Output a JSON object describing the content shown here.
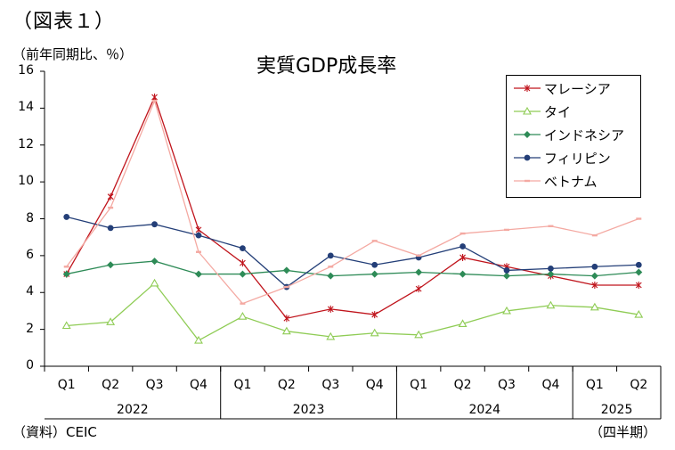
{
  "figure_label": "（図表１）",
  "unit_label": "（前年同期比、％）",
  "source_label": "（資料）CEIC",
  "period_label": "（四半期）",
  "chart_data": {
    "type": "line",
    "title": "実質GDP成長率",
    "ylim": [
      0,
      16
    ],
    "yticks": [
      0,
      2,
      4,
      6,
      8,
      10,
      12,
      14,
      16
    ],
    "categories": [
      "Q1",
      "Q2",
      "Q3",
      "Q4",
      "Q1",
      "Q2",
      "Q3",
      "Q4",
      "Q1",
      "Q2",
      "Q3",
      "Q4",
      "Q1",
      "Q2"
    ],
    "years": [
      {
        "label": "2022",
        "count": 4
      },
      {
        "label": "2023",
        "count": 4
      },
      {
        "label": "2024",
        "count": 4
      },
      {
        "label": "2025",
        "count": 2
      }
    ],
    "grid": false,
    "legend_position": "top-right",
    "series": [
      {
        "name": "マレーシア",
        "color": "#c0141c",
        "marker": "star",
        "values": [
          5.0,
          9.2,
          14.6,
          7.4,
          5.6,
          2.6,
          3.1,
          2.8,
          4.2,
          5.9,
          5.4,
          4.9,
          4.4,
          4.4
        ]
      },
      {
        "name": "タイ",
        "color": "#8fcc55",
        "marker": "triangle",
        "values": [
          2.2,
          2.4,
          4.5,
          1.4,
          2.7,
          1.9,
          1.6,
          1.8,
          1.7,
          2.3,
          3.0,
          3.3,
          3.2,
          2.8
        ]
      },
      {
        "name": "インドネシア",
        "color": "#2e8b57",
        "marker": "diamond",
        "values": [
          5.0,
          5.5,
          5.7,
          5.0,
          5.0,
          5.2,
          4.9,
          5.0,
          5.1,
          5.0,
          4.9,
          5.0,
          4.9,
          5.1
        ]
      },
      {
        "name": "フィリピン",
        "color": "#243f78",
        "marker": "circle",
        "values": [
          8.1,
          7.5,
          7.7,
          7.1,
          6.4,
          4.3,
          6.0,
          5.5,
          5.9,
          6.5,
          5.2,
          5.3,
          5.4,
          5.5
        ]
      },
      {
        "name": "ベトナム",
        "color": "#f4a9a2",
        "marker": "dash",
        "values": [
          5.4,
          8.6,
          14.4,
          6.2,
          3.4,
          4.3,
          5.4,
          6.8,
          6.0,
          7.2,
          7.4,
          7.6,
          7.1,
          8.0
        ]
      }
    ]
  }
}
